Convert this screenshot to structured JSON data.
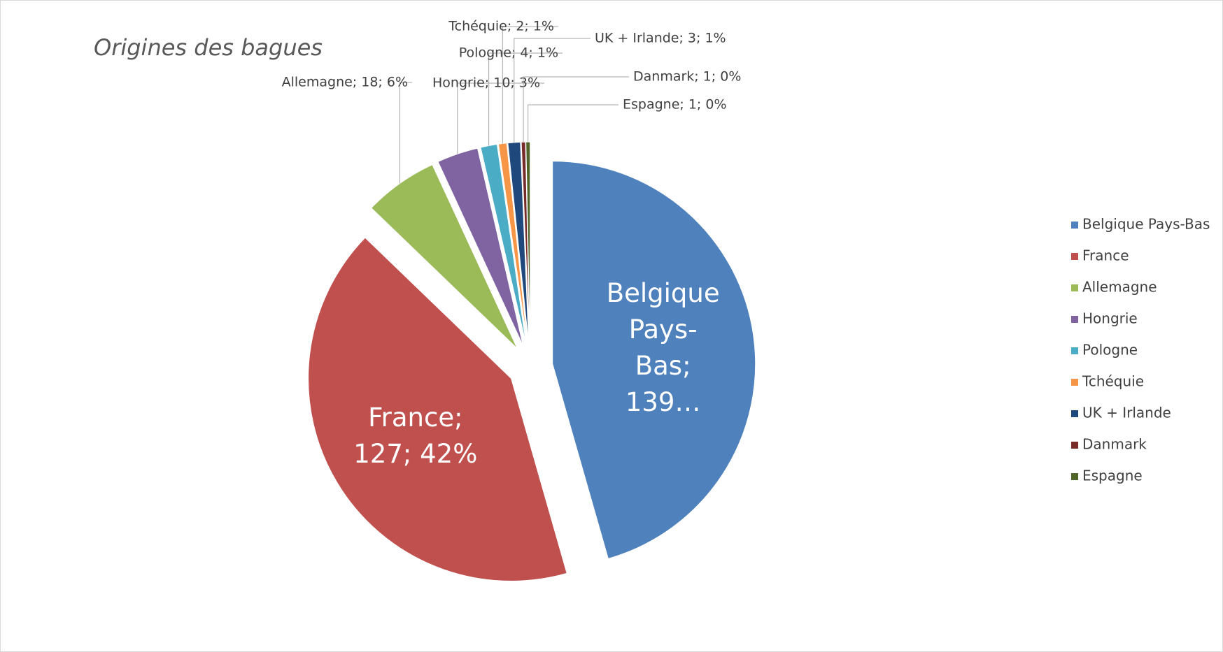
{
  "chart_data": {
    "type": "pie",
    "title": "Origines des bagues",
    "categories": [
      "Belgique Pays-Bas",
      "France",
      "Allemagne",
      "Hongrie",
      "Pologne",
      "Tchéquie",
      "UK + Irlande",
      "Danmark",
      "Espagne"
    ],
    "values": [
      139,
      127,
      18,
      10,
      4,
      2,
      3,
      1,
      1
    ],
    "value_labels": [
      "Belgique Pays-Bas; 139…",
      "France; 127; 42%",
      "Allemagne; 18; 6%",
      "Hongrie; 10; 3%",
      "Pologne; 4; 1%",
      "Tchéquie; 2; 1%",
      "UK + Irlande; 3; 1%",
      "Danmark; 1; 0%",
      "Espagne; 1; 0%"
    ],
    "colors": [
      "#4f81bd",
      "#c0504d",
      "#9bbb59",
      "#8064a2",
      "#4bacc6",
      "#f79646",
      "#1f497d",
      "#772c2a",
      "#4f6228"
    ],
    "legend": "right"
  }
}
